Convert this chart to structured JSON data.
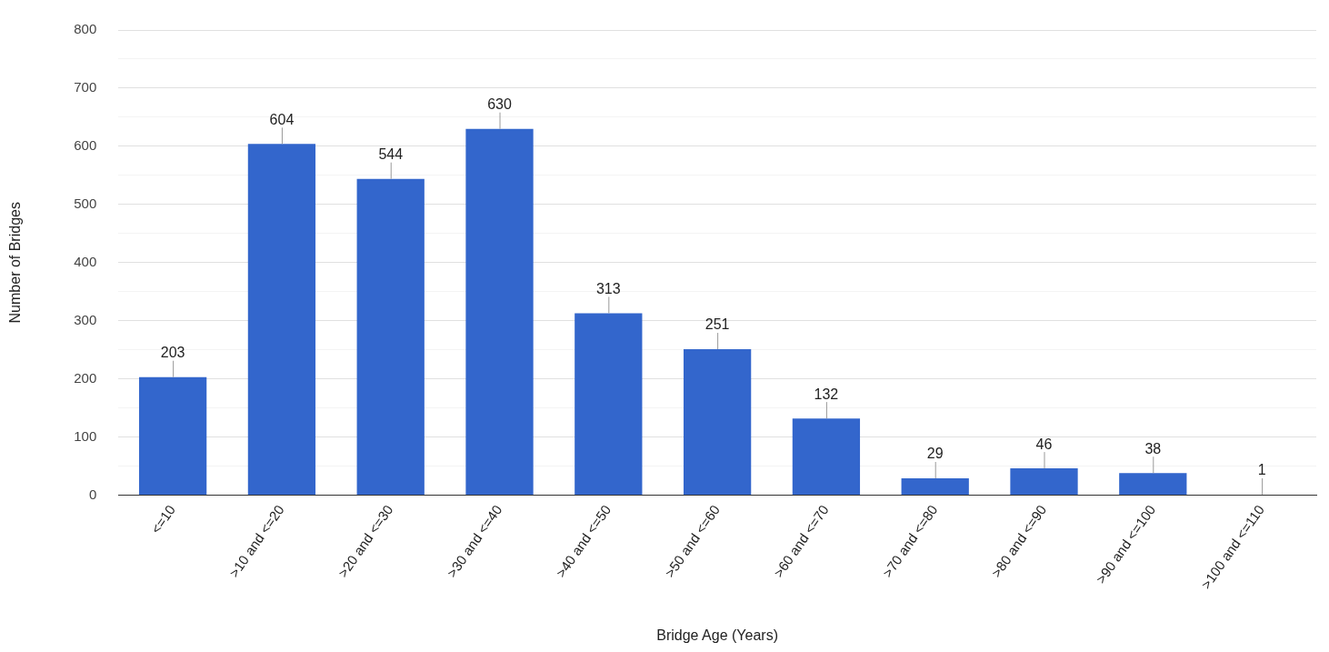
{
  "chart_data": {
    "type": "bar",
    "xlabel": "Bridge Age (Years)",
    "ylabel": "Number of Bridges",
    "categories": [
      "<=10",
      ">10 and <=20",
      ">20 and <=30",
      ">30 and <=40",
      ">40 and <=50",
      ">50 and <=60",
      ">60 and <=70",
      ">70 and <=80",
      ">80 and <=90",
      ">90 and <=100",
      ">100 and <=110"
    ],
    "values": [
      203,
      604,
      544,
      630,
      313,
      251,
      132,
      29,
      46,
      38,
      1
    ],
    "color": "#3366cc",
    "ylim": [
      0,
      800
    ],
    "yticks": [
      0,
      {
        "value": 50,
        "label": null
      },
      100,
      {
        "value": 150,
        "label": null
      },
      200,
      {
        "value": 250,
        "label": null
      },
      300,
      {
        "value": 350,
        "label": null
      },
      400,
      {
        "value": 450,
        "label": null
      },
      500,
      {
        "value": 550,
        "label": null
      },
      600,
      {
        "value": 650,
        "label": null
      },
      700,
      {
        "value": 750,
        "label": null
      },
      800
    ],
    "grid": "y",
    "legend": false,
    "data_labels": true
  }
}
